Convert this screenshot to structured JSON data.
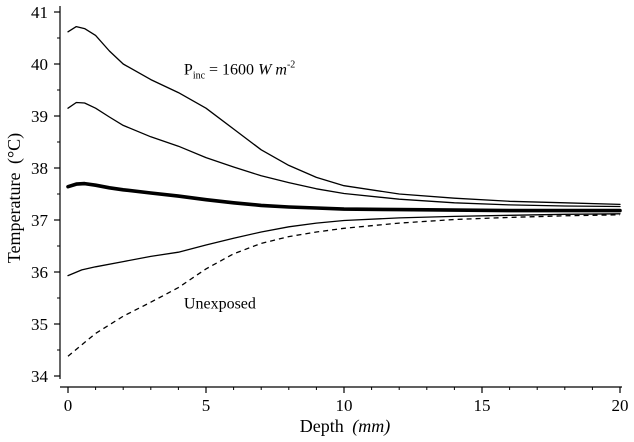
{
  "chart_data": {
    "type": "line",
    "title": "",
    "xlabel": "Depth",
    "xlabel_unit": "(mm)",
    "ylabel": "Temperature",
    "ylabel_unit": "(°C)",
    "xlim": [
      0,
      20
    ],
    "ylim": [
      34,
      41
    ],
    "x_ticks": [
      0,
      5,
      10,
      15,
      20
    ],
    "y_ticks": [
      34,
      35,
      36,
      37,
      38,
      39,
      40,
      41
    ],
    "grid": false,
    "legend": "none",
    "series": [
      {
        "style": "solid-thin",
        "x": [
          0,
          0.3,
          0.6,
          1,
          1.5,
          2,
          3,
          4,
          5,
          6,
          7,
          8,
          9,
          10,
          12,
          14,
          16,
          18,
          20
        ],
        "y": [
          40.62,
          40.72,
          40.68,
          40.55,
          40.25,
          40.0,
          39.7,
          39.45,
          39.15,
          38.75,
          38.35,
          38.05,
          37.82,
          37.66,
          37.5,
          37.42,
          37.36,
          37.33,
          37.3
        ]
      },
      {
        "style": "solid-thin",
        "x": [
          0,
          0.3,
          0.6,
          1,
          1.5,
          2,
          3,
          4,
          5,
          6,
          7,
          8,
          9,
          10,
          12,
          14,
          16,
          18,
          20
        ],
        "y": [
          39.15,
          39.26,
          39.25,
          39.15,
          38.98,
          38.82,
          38.6,
          38.42,
          38.2,
          38.02,
          37.85,
          37.72,
          37.6,
          37.51,
          37.4,
          37.33,
          37.29,
          37.27,
          37.26
        ]
      },
      {
        "style": "solid-bold",
        "x": [
          0,
          0.3,
          0.6,
          1,
          1.5,
          2,
          3,
          4,
          5,
          6,
          7,
          8,
          9,
          10,
          12,
          14,
          16,
          18,
          20
        ],
        "y": [
          37.64,
          37.69,
          37.7,
          37.67,
          37.62,
          37.58,
          37.52,
          37.46,
          37.39,
          37.33,
          37.28,
          37.25,
          37.23,
          37.21,
          37.2,
          37.19,
          37.18,
          37.18,
          37.18
        ]
      },
      {
        "style": "solid-thin",
        "x": [
          0,
          0.5,
          1,
          2,
          3,
          4,
          5,
          6,
          7,
          8,
          9,
          10,
          12,
          14,
          16,
          18,
          20
        ],
        "y": [
          35.93,
          36.04,
          36.1,
          36.2,
          36.3,
          36.38,
          36.52,
          36.65,
          36.77,
          36.87,
          36.94,
          36.99,
          37.04,
          37.07,
          37.09,
          37.11,
          37.12
        ]
      },
      {
        "name": "Unexposed",
        "style": "dashed",
        "x": [
          0,
          0.5,
          1,
          2,
          3,
          4,
          5,
          6,
          7,
          8,
          9,
          10,
          12,
          14,
          16,
          18,
          20
        ],
        "y": [
          34.38,
          34.6,
          34.82,
          35.15,
          35.42,
          35.7,
          36.06,
          36.35,
          36.55,
          36.68,
          36.77,
          36.84,
          36.94,
          37.01,
          37.05,
          37.08,
          37.1
        ]
      }
    ],
    "annotations": [
      {
        "id": "pinc",
        "prefix": "P",
        "sub": "inc",
        "body": " = 1600 ",
        "unit_a": "W m",
        "sup": "-2",
        "x": 4.2,
        "y": 39.8
      },
      {
        "id": "unexposed",
        "text": "Unexposed",
        "x": 4.2,
        "y": 35.3
      }
    ]
  }
}
